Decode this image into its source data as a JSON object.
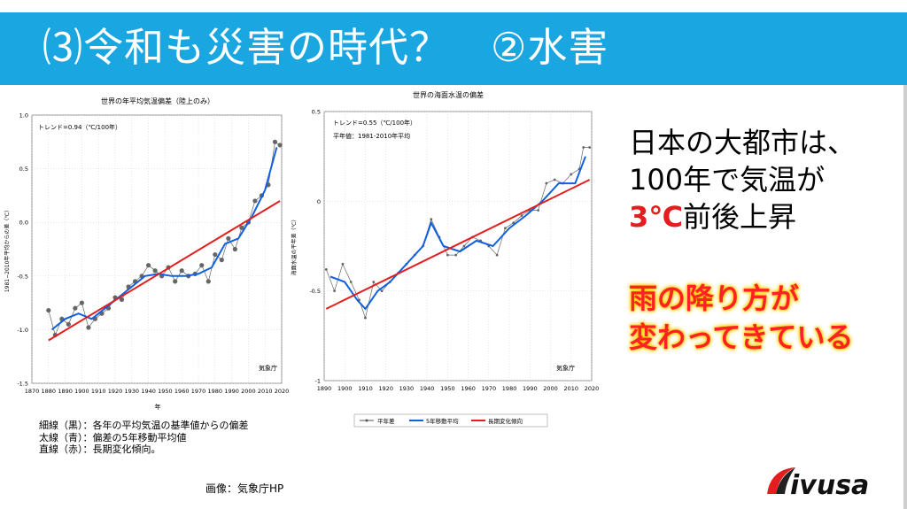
{
  "slide": {
    "title": "⑶令和も災害の時代？　②水害",
    "side_text": [
      "日本の大都市は、",
      "100年で気温が"
    ],
    "side_highlight": "3℃",
    "side_tail": "前後上昇",
    "emphasis": [
      "雨の降り方が",
      "変わってきている"
    ],
    "notes": [
      "細線（黒）：各年の平均気温の基準値からの偏差",
      "太線（青）：偏差の5年移動平均値",
      "直線（赤）：長期変化傾向。"
    ],
    "credit": "画像：気象庁HP",
    "logo": "ivusa"
  },
  "colors": {
    "banner": "#1aa6e0",
    "trend": "#e41e1e",
    "moving_avg": "#1060e0",
    "annual": "#555555",
    "emphasis": "#ff2222"
  },
  "chart_data": [
    {
      "type": "line",
      "title": "世界の年平均気温偏差（陸上のみ）",
      "annotation": "トレンド=0.94（℃/100年）",
      "source": "気象庁",
      "xlabel": "年",
      "ylabel": "1981−2010年平均からの差（℃）",
      "xlim": [
        1870,
        2020
      ],
      "ylim": [
        -1.5,
        1.0
      ],
      "xticks": [
        1870,
        1880,
        1890,
        1900,
        1910,
        1920,
        1930,
        1940,
        1950,
        1960,
        1970,
        1980,
        1990,
        2000,
        2010,
        2020
      ],
      "yticks": [
        -1.5,
        -1.0,
        -0.5,
        0.0,
        0.5,
        1.0
      ],
      "grid": true,
      "series": [
        {
          "name": "annual",
          "x": [
            1880,
            1884,
            1888,
            1892,
            1896,
            1900,
            1904,
            1908,
            1912,
            1916,
            1920,
            1924,
            1928,
            1932,
            1936,
            1940,
            1944,
            1948,
            1952,
            1956,
            1960,
            1964,
            1968,
            1972,
            1976,
            1980,
            1984,
            1988,
            1992,
            1996,
            2000,
            2004,
            2008,
            2012,
            2016,
            2019
          ],
          "values": [
            -0.82,
            -1.05,
            -0.9,
            -0.95,
            -0.8,
            -0.75,
            -0.98,
            -0.9,
            -0.85,
            -0.8,
            -0.7,
            -0.72,
            -0.6,
            -0.55,
            -0.5,
            -0.4,
            -0.45,
            -0.5,
            -0.42,
            -0.55,
            -0.45,
            -0.5,
            -0.48,
            -0.4,
            -0.55,
            -0.3,
            -0.35,
            -0.15,
            -0.25,
            -0.05,
            0.0,
            0.2,
            0.25,
            0.35,
            0.75,
            0.72
          ]
        },
        {
          "name": "5-year moving average",
          "x": [
            1882,
            1890,
            1898,
            1906,
            1914,
            1922,
            1930,
            1938,
            1946,
            1954,
            1962,
            1970,
            1978,
            1986,
            1994,
            2002,
            2010,
            2017
          ],
          "values": [
            -1.0,
            -0.9,
            -0.85,
            -0.9,
            -0.8,
            -0.7,
            -0.6,
            -0.5,
            -0.48,
            -0.5,
            -0.5,
            -0.48,
            -0.42,
            -0.2,
            -0.15,
            0.05,
            0.3,
            0.7
          ]
        },
        {
          "name": "trend",
          "x": [
            1880,
            2019
          ],
          "values": [
            -1.1,
            0.2
          ]
        }
      ]
    },
    {
      "type": "line",
      "title": "世界の海面水温の偏差",
      "annotation": [
        "トレンド=0.55（℃/100年）",
        "平年値：1981-2010年平均"
      ],
      "source": "気象庁",
      "ylabel": "海面水温の平年差（℃）",
      "xlim": [
        1890,
        2020
      ],
      "ylim": [
        -1.0,
        0.5
      ],
      "xticks": [
        1890,
        1900,
        1910,
        1920,
        1930,
        1940,
        1950,
        1960,
        1970,
        1980,
        1990,
        2000,
        2010,
        2020
      ],
      "yticks": [
        -1,
        -0.5,
        0,
        0.5
      ],
      "grid": true,
      "legend": [
        "平年差",
        "5年移動平均",
        "長期変化傾向"
      ],
      "legend_position": "bottom",
      "series": [
        {
          "name": "平年差",
          "x": [
            1891,
            1895,
            1899,
            1903,
            1907,
            1910,
            1914,
            1918,
            1922,
            1926,
            1930,
            1934,
            1938,
            1942,
            1946,
            1950,
            1954,
            1958,
            1962,
            1966,
            1970,
            1974,
            1978,
            1982,
            1986,
            1990,
            1994,
            1998,
            2002,
            2006,
            2010,
            2014,
            2016,
            2019
          ],
          "values": [
            -0.38,
            -0.5,
            -0.35,
            -0.45,
            -0.55,
            -0.65,
            -0.45,
            -0.5,
            -0.45,
            -0.4,
            -0.35,
            -0.3,
            -0.25,
            -0.1,
            -0.2,
            -0.3,
            -0.3,
            -0.25,
            -0.2,
            -0.22,
            -0.25,
            -0.3,
            -0.15,
            -0.12,
            -0.08,
            -0.05,
            -0.05,
            0.1,
            0.12,
            0.1,
            0.15,
            0.18,
            0.3,
            0.3
          ]
        },
        {
          "name": "5年移動平均",
          "x": [
            1893,
            1900,
            1906,
            1910,
            1916,
            1922,
            1930,
            1938,
            1942,
            1948,
            1956,
            1964,
            1972,
            1980,
            1988,
            1996,
            2004,
            2012,
            2017
          ],
          "values": [
            -0.42,
            -0.45,
            -0.55,
            -0.6,
            -0.5,
            -0.45,
            -0.35,
            -0.25,
            -0.12,
            -0.25,
            -0.28,
            -0.22,
            -0.25,
            -0.15,
            -0.08,
            0.0,
            0.1,
            0.1,
            0.25
          ]
        },
        {
          "name": "長期変化傾向",
          "x": [
            1891,
            2019
          ],
          "values": [
            -0.6,
            0.12
          ]
        }
      ]
    }
  ]
}
